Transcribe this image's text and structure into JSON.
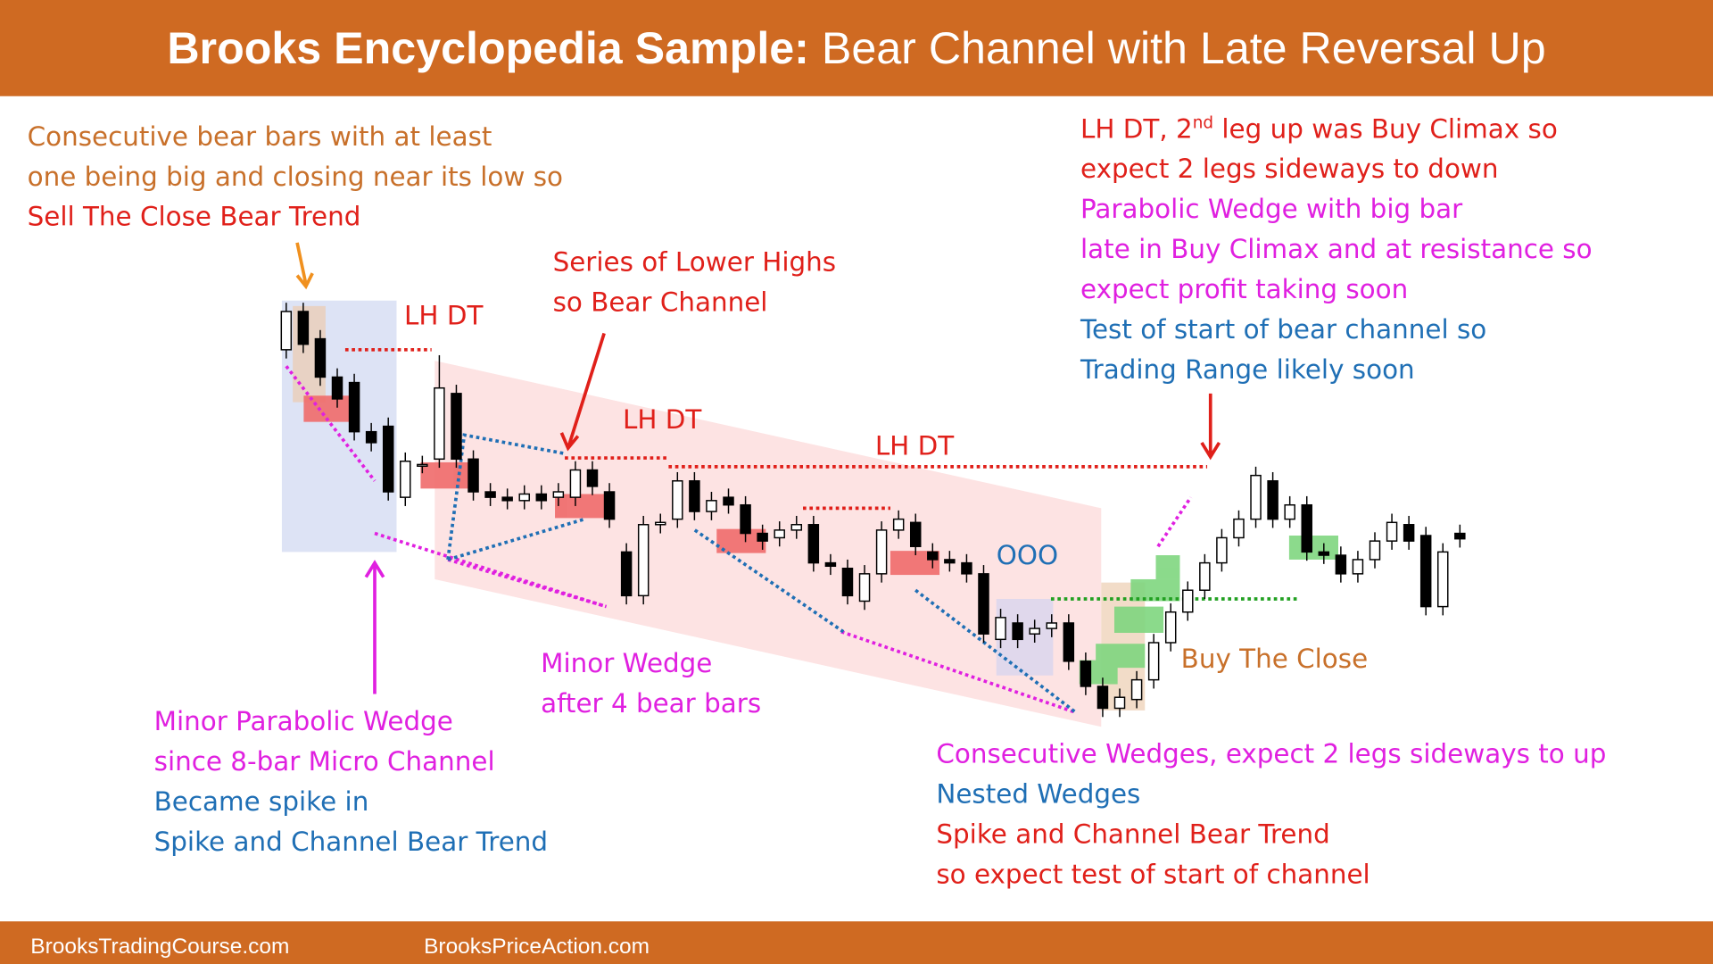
{
  "chart_data": {
    "type": "candlestick",
    "title": {
      "bold": "Brooks Encyclopedia Sample:",
      "rest": "Bear Channel with Late Reversal Up"
    },
    "footer": [
      "BrooksTradingCourse.com",
      "BrooksPriceAction.com"
    ],
    "ylim": [
      0,
      500
    ],
    "bull_color": "#ffffff",
    "bear_color": "#000000",
    "open": [
      380,
      415,
      390,
      355,
      350,
      305,
      310,
      245,
      275,
      280,
      340,
      280,
      250,
      245,
      242,
      248,
      245,
      245,
      270,
      250,
      195,
      155,
      220,
      225,
      260,
      232,
      245,
      238,
      212,
      208,
      215,
      220,
      185,
      180,
      150,
      175,
      215,
      222,
      195,
      188,
      185,
      175,
      115,
      130,
      120,
      125,
      130,
      95,
      72,
      52,
      60,
      78,
      112,
      140,
      160,
      185,
      208,
      225,
      260,
      225,
      238,
      195,
      192,
      175,
      188,
      205,
      220,
      210,
      145,
      212
    ],
    "high": [
      423,
      423,
      398,
      363,
      358,
      313,
      318,
      286,
      283,
      375,
      348,
      288,
      258,
      253,
      256,
      256,
      258,
      278,
      278,
      258,
      203,
      228,
      230,
      268,
      268,
      250,
      253,
      246,
      220,
      223,
      228,
      228,
      193,
      188,
      183,
      223,
      233,
      230,
      203,
      196,
      193,
      183,
      143,
      138,
      133,
      138,
      138,
      103,
      80,
      70,
      86,
      120,
      148,
      168,
      193,
      216,
      233,
      273,
      268,
      246,
      246,
      203,
      200,
      196,
      213,
      230,
      228,
      218,
      203,
      220
    ],
    "low": [
      372,
      377,
      347,
      327,
      297,
      287,
      242,
      237,
      267,
      272,
      272,
      242,
      237,
      234,
      234,
      234,
      237,
      237,
      247,
      217,
      147,
      147,
      212,
      217,
      224,
      224,
      230,
      204,
      197,
      200,
      207,
      177,
      174,
      147,
      142,
      167,
      207,
      192,
      180,
      177,
      167,
      112,
      107,
      107,
      112,
      117,
      87,
      64,
      44,
      44,
      52,
      70,
      104,
      132,
      152,
      177,
      200,
      217,
      217,
      217,
      187,
      184,
      167,
      167,
      180,
      197,
      197,
      137,
      137,
      199
    ],
    "close": [
      415,
      385,
      355,
      335,
      305,
      295,
      250,
      278,
      275,
      345,
      280,
      250,
      245,
      242,
      248,
      242,
      250,
      270,
      255,
      225,
      155,
      220,
      222,
      260,
      232,
      242,
      238,
      212,
      205,
      215,
      220,
      185,
      182,
      155,
      175,
      215,
      225,
      200,
      188,
      185,
      175,
      120,
      135,
      115,
      125,
      130,
      95,
      72,
      52,
      62,
      78,
      112,
      140,
      160,
      185,
      208,
      225,
      265,
      225,
      238,
      195,
      192,
      175,
      188,
      205,
      222,
      205,
      145,
      195,
      207
    ],
    "annotations": [
      {
        "lines": [
          {
            "text": "Consecutive bear bars with at least",
            "color": "#c8702a"
          },
          {
            "text": "one being big and closing near its low so",
            "color": "#c8702a"
          },
          {
            "text": "Sell The Close Bear Trend",
            "color": "#e0201a"
          }
        ]
      },
      {
        "lines": [
          {
            "text": "LH DT",
            "color": "#e0201a"
          }
        ]
      },
      {
        "lines": [
          {
            "text": "Series of Lower Highs",
            "color": "#e0201a"
          },
          {
            "text": "so Bear Channel",
            "color": "#e0201a"
          }
        ]
      },
      {
        "lines": [
          {
            "text": "LH DT",
            "color": "#e0201a"
          }
        ]
      },
      {
        "lines": [
          {
            "text": "LH DT",
            "color": "#e0201a"
          }
        ]
      },
      {
        "lines": [
          {
            "parts": [
              "LH DT, 2",
              "nd",
              " leg up was Buy Climax so"
            ],
            "color": "#e0201a"
          },
          {
            "text": "expect 2 legs sideways to down",
            "color": "#e0201a"
          },
          {
            "text": "Parabolic Wedge with big bar",
            "color": "#e020e0"
          },
          {
            "text": "late in Buy Climax and at resistance so",
            "color": "#e020e0"
          },
          {
            "text": "expect profit taking soon",
            "color": "#e020e0"
          },
          {
            "text": "Test of start of bear channel so",
            "color": "#1f6fb5"
          },
          {
            "text": "Trading Range likely soon",
            "color": "#1f6fb5"
          }
        ]
      },
      {
        "lines": [
          {
            "text": "OOO",
            "color": "#1f6fb5"
          }
        ]
      },
      {
        "lines": [
          {
            "text": "Buy The Close",
            "color": "#c8702a"
          }
        ]
      },
      {
        "lines": [
          {
            "text": "Minor Wedge",
            "color": "#e020e0"
          },
          {
            "text": "after 4 bear bars",
            "color": "#e020e0"
          }
        ]
      },
      {
        "lines": [
          {
            "text": "Minor Parabolic Wedge",
            "color": "#e020e0"
          },
          {
            "text": "since 8-bar Micro Channel",
            "color": "#e020e0"
          },
          {
            "text": "Became spike in",
            "color": "#1f6fb5"
          },
          {
            "text": "Spike and Channel Bear Trend",
            "color": "#1f6fb5"
          }
        ]
      },
      {
        "lines": [
          {
            "text": "Consecutive Wedges, expect 2 legs sideways to up",
            "color": "#e020e0"
          },
          {
            "text": "Nested Wedges",
            "color": "#1f6fb5"
          },
          {
            "text": "Spike and Channel Bear Trend",
            "color": "#e0201a"
          },
          {
            "text": "so expect test of start of channel",
            "color": "#e0201a"
          }
        ]
      }
    ]
  }
}
